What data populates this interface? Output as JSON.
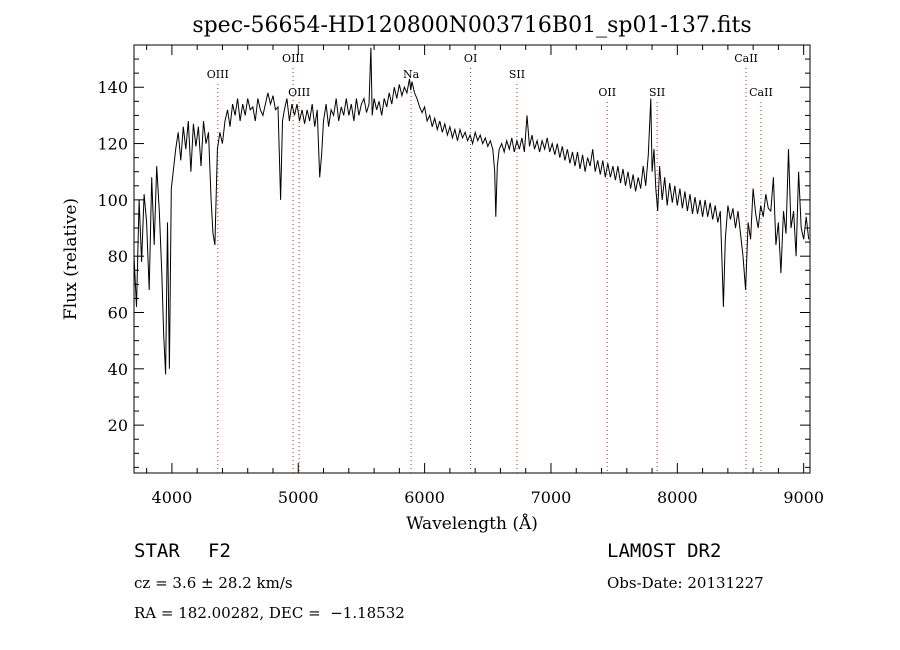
{
  "chart_data": {
    "type": "line",
    "title": "spec-56654-HD120800N003716B01_sp01-137.fits",
    "xlabel": "Wavelength (Å)",
    "ylabel": "Flux (relative)",
    "xlim": [
      3700,
      9050
    ],
    "ylim": [
      3,
      155
    ],
    "xticks": [
      4000,
      5000,
      6000,
      7000,
      8000,
      9000
    ],
    "yticks": [
      20,
      40,
      60,
      80,
      100,
      120,
      140
    ],
    "grid": false,
    "series": [
      {
        "points": [
          [
            3700,
            80
          ],
          [
            3720,
            62
          ],
          [
            3740,
            100
          ],
          [
            3760,
            78
          ],
          [
            3780,
            102
          ],
          [
            3800,
            92
          ],
          [
            3820,
            68
          ],
          [
            3840,
            108
          ],
          [
            3860,
            84
          ],
          [
            3880,
            112
          ],
          [
            3900,
            96
          ],
          [
            3920,
            74
          ],
          [
            3935,
            52
          ],
          [
            3950,
            38
          ],
          [
            3965,
            92
          ],
          [
            3980,
            40
          ],
          [
            3995,
            104
          ],
          [
            4010,
            110
          ],
          [
            4030,
            118
          ],
          [
            4050,
            124
          ],
          [
            4070,
            114
          ],
          [
            4090,
            126
          ],
          [
            4110,
            118
          ],
          [
            4130,
            128
          ],
          [
            4150,
            110
          ],
          [
            4170,
            127
          ],
          [
            4190,
            119
          ],
          [
            4210,
            126
          ],
          [
            4230,
            112
          ],
          [
            4250,
            128
          ],
          [
            4270,
            120
          ],
          [
            4290,
            124
          ],
          [
            4310,
            100
          ],
          [
            4325,
            88
          ],
          [
            4340,
            84
          ],
          [
            4360,
            118
          ],
          [
            4380,
            124
          ],
          [
            4400,
            120
          ],
          [
            4420,
            128
          ],
          [
            4440,
            132
          ],
          [
            4460,
            126
          ],
          [
            4480,
            134
          ],
          [
            4500,
            130
          ],
          [
            4520,
            136
          ],
          [
            4540,
            128
          ],
          [
            4560,
            134
          ],
          [
            4580,
            130
          ],
          [
            4600,
            136
          ],
          [
            4620,
            132
          ],
          [
            4640,
            133
          ],
          [
            4660,
            128
          ],
          [
            4680,
            136
          ],
          [
            4700,
            132
          ],
          [
            4720,
            130
          ],
          [
            4740,
            134
          ],
          [
            4760,
            138
          ],
          [
            4780,
            134
          ],
          [
            4800,
            137
          ],
          [
            4820,
            132
          ],
          [
            4840,
            133
          ],
          [
            4860,
            100
          ],
          [
            4875,
            128
          ],
          [
            4890,
            132
          ],
          [
            4910,
            136
          ],
          [
            4930,
            128
          ],
          [
            4950,
            134
          ],
          [
            4970,
            130
          ],
          [
            4990,
            134
          ],
          [
            5010,
            128
          ],
          [
            5030,
            132
          ],
          [
            5050,
            127
          ],
          [
            5070,
            132
          ],
          [
            5090,
            128
          ],
          [
            5110,
            134
          ],
          [
            5130,
            126
          ],
          [
            5150,
            132
          ],
          [
            5170,
            108
          ],
          [
            5185,
            116
          ],
          [
            5200,
            128
          ],
          [
            5220,
            134
          ],
          [
            5240,
            126
          ],
          [
            5260,
            132
          ],
          [
            5280,
            130
          ],
          [
            5300,
            136
          ],
          [
            5320,
            128
          ],
          [
            5340,
            133
          ],
          [
            5360,
            130
          ],
          [
            5380,
            136
          ],
          [
            5400,
            130
          ],
          [
            5420,
            134
          ],
          [
            5440,
            128
          ],
          [
            5460,
            136
          ],
          [
            5480,
            130
          ],
          [
            5500,
            134
          ],
          [
            5520,
            136
          ],
          [
            5540,
            131
          ],
          [
            5560,
            134
          ],
          [
            5575,
            154
          ],
          [
            5585,
            130
          ],
          [
            5600,
            136
          ],
          [
            5620,
            132
          ],
          [
            5640,
            135
          ],
          [
            5660,
            130
          ],
          [
            5680,
            136
          ],
          [
            5700,
            133
          ],
          [
            5720,
            138
          ],
          [
            5740,
            134
          ],
          [
            5760,
            140
          ],
          [
            5780,
            136
          ],
          [
            5800,
            141
          ],
          [
            5820,
            137
          ],
          [
            5840,
            140
          ],
          [
            5860,
            138
          ],
          [
            5880,
            143
          ],
          [
            5890,
            139
          ],
          [
            5900,
            142
          ],
          [
            5920,
            138
          ],
          [
            5940,
            136
          ],
          [
            5960,
            133
          ],
          [
            5980,
            131
          ],
          [
            6000,
            133
          ],
          [
            6020,
            128
          ],
          [
            6040,
            130
          ],
          [
            6060,
            126
          ],
          [
            6080,
            129
          ],
          [
            6100,
            125
          ],
          [
            6120,
            128
          ],
          [
            6140,
            124
          ],
          [
            6160,
            127
          ],
          [
            6180,
            123
          ],
          [
            6200,
            126
          ],
          [
            6220,
            122
          ],
          [
            6240,
            125
          ],
          [
            6260,
            121
          ],
          [
            6280,
            125
          ],
          [
            6300,
            122
          ],
          [
            6320,
            124
          ],
          [
            6340,
            121
          ],
          [
            6360,
            123
          ],
          [
            6380,
            120
          ],
          [
            6400,
            124
          ],
          [
            6420,
            121
          ],
          [
            6440,
            123
          ],
          [
            6460,
            120
          ],
          [
            6480,
            122
          ],
          [
            6500,
            119
          ],
          [
            6520,
            121
          ],
          [
            6540,
            118
          ],
          [
            6555,
            110
          ],
          [
            6563,
            94
          ],
          [
            6575,
            112
          ],
          [
            6590,
            118
          ],
          [
            6610,
            120
          ],
          [
            6630,
            117
          ],
          [
            6650,
            121
          ],
          [
            6670,
            118
          ],
          [
            6690,
            122
          ],
          [
            6710,
            117
          ],
          [
            6730,
            121
          ],
          [
            6750,
            118
          ],
          [
            6770,
            122
          ],
          [
            6790,
            117
          ],
          [
            6810,
            130
          ],
          [
            6830,
            119
          ],
          [
            6850,
            123
          ],
          [
            6870,
            118
          ],
          [
            6890,
            121
          ],
          [
            6910,
            117
          ],
          [
            6930,
            121
          ],
          [
            6950,
            118
          ],
          [
            6970,
            122
          ],
          [
            6990,
            117
          ],
          [
            7010,
            120
          ],
          [
            7030,
            116
          ],
          [
            7050,
            120
          ],
          [
            7070,
            115
          ],
          [
            7090,
            119
          ],
          [
            7110,
            114
          ],
          [
            7130,
            118
          ],
          [
            7150,
            113
          ],
          [
            7170,
            117
          ],
          [
            7190,
            112
          ],
          [
            7210,
            117
          ],
          [
            7230,
            111
          ],
          [
            7250,
            116
          ],
          [
            7270,
            110
          ],
          [
            7290,
            115
          ],
          [
            7310,
            112
          ],
          [
            7330,
            118
          ],
          [
            7350,
            110
          ],
          [
            7370,
            114
          ],
          [
            7390,
            109
          ],
          [
            7410,
            114
          ],
          [
            7430,
            108
          ],
          [
            7450,
            113
          ],
          [
            7470,
            108
          ],
          [
            7490,
            112
          ],
          [
            7510,
            107
          ],
          [
            7530,
            112
          ],
          [
            7550,
            106
          ],
          [
            7570,
            111
          ],
          [
            7590,
            105
          ],
          [
            7610,
            110
          ],
          [
            7630,
            104
          ],
          [
            7650,
            109
          ],
          [
            7670,
            103
          ],
          [
            7690,
            108
          ],
          [
            7710,
            104
          ],
          [
            7730,
            112
          ],
          [
            7750,
            105
          ],
          [
            7770,
            116
          ],
          [
            7790,
            136
          ],
          [
            7800,
            110
          ],
          [
            7815,
            118
          ],
          [
            7830,
            104
          ],
          [
            7845,
            96
          ],
          [
            7860,
            112
          ],
          [
            7880,
            100
          ],
          [
            7900,
            108
          ],
          [
            7920,
            98
          ],
          [
            7940,
            106
          ],
          [
            7960,
            99
          ],
          [
            7980,
            105
          ],
          [
            8000,
            98
          ],
          [
            8020,
            104
          ],
          [
            8040,
            97
          ],
          [
            8060,
            103
          ],
          [
            8080,
            96
          ],
          [
            8100,
            102
          ],
          [
            8120,
            95
          ],
          [
            8140,
            101
          ],
          [
            8160,
            95
          ],
          [
            8180,
            100
          ],
          [
            8200,
            94
          ],
          [
            8220,
            100
          ],
          [
            8240,
            94
          ],
          [
            8260,
            99
          ],
          [
            8280,
            93
          ],
          [
            8300,
            98
          ],
          [
            8320,
            92
          ],
          [
            8340,
            96
          ],
          [
            8355,
            76
          ],
          [
            8365,
            62
          ],
          [
            8380,
            86
          ],
          [
            8400,
            98
          ],
          [
            8420,
            93
          ],
          [
            8440,
            97
          ],
          [
            8460,
            90
          ],
          [
            8480,
            96
          ],
          [
            8500,
            88
          ],
          [
            8520,
            80
          ],
          [
            8540,
            68
          ],
          [
            8560,
            92
          ],
          [
            8580,
            86
          ],
          [
            8600,
            104
          ],
          [
            8620,
            95
          ],
          [
            8640,
            90
          ],
          [
            8660,
            98
          ],
          [
            8680,
            94
          ],
          [
            8700,
            102
          ],
          [
            8720,
            97
          ],
          [
            8740,
            96
          ],
          [
            8760,
            108
          ],
          [
            8780,
            84
          ],
          [
            8800,
            92
          ],
          [
            8820,
            74
          ],
          [
            8840,
            96
          ],
          [
            8860,
            88
          ],
          [
            8880,
            118
          ],
          [
            8900,
            90
          ],
          [
            8920,
            96
          ],
          [
            8940,
            80
          ],
          [
            8960,
            110
          ],
          [
            8980,
            90
          ],
          [
            9000,
            86
          ],
          [
            9020,
            94
          ],
          [
            9040,
            86
          ]
        ]
      }
    ],
    "lines": [
      {
        "label": "OIII",
        "x": 4363,
        "row": 1
      },
      {
        "label": "OIII",
        "x": 4959,
        "row": 0
      },
      {
        "label": "OIII",
        "x": 5007,
        "row": 2
      },
      {
        "label": "Na",
        "x": 5893,
        "row": 1
      },
      {
        "label": "OI",
        "x": 6364,
        "row": 0
      },
      {
        "label": "SII",
        "x": 6731,
        "row": 1
      },
      {
        "label": "OII",
        "x": 7445,
        "row": 2
      },
      {
        "label": "SII",
        "x": 7840,
        "row": 2
      },
      {
        "label": "CaII",
        "x": 8544,
        "row": 0
      },
      {
        "label": "CaII",
        "x": 8662,
        "row": 2
      }
    ]
  },
  "info": {
    "object_type": "STAR",
    "subclass": "F2",
    "survey": "LAMOST DR2",
    "redshift": "cz = 3.6 ± 28.2 km/s",
    "obs_date": "Obs-Date: 20131227",
    "coords": "RA = 182.00282, DEC =  −1.18532"
  }
}
